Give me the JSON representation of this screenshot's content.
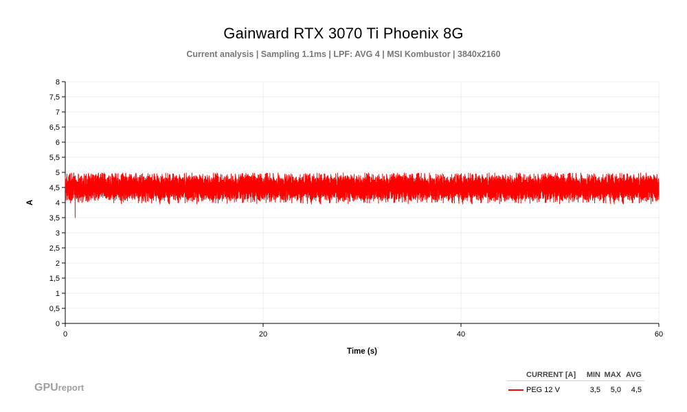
{
  "chart_data": {
    "type": "line",
    "title": "Gainward RTX 3070 Ti Phoenix 8G",
    "subtitle": "Current analysis | Sampling 1.1ms | LPF: AVG 4 |  MSI Kombustor | 3840x2160",
    "xlabel": "Time (s)",
    "ylabel": "A",
    "xlim": [
      0,
      60
    ],
    "ylim": [
      0,
      8
    ],
    "x_ticks": [
      "0",
      "20",
      "40",
      "60"
    ],
    "x_tick_values": [
      0,
      20,
      40,
      60
    ],
    "y_ticks": [
      "0",
      "0,5",
      "1",
      "1,5",
      "2",
      "2,5",
      "3",
      "3,5",
      "4",
      "4,5",
      "5",
      "5,5",
      "6",
      "6,5",
      "7",
      "7,5",
      "8"
    ],
    "y_tick_values": [
      0,
      0.5,
      1,
      1.5,
      2,
      2.5,
      3,
      3.5,
      4,
      4.5,
      5,
      5.5,
      6,
      6.5,
      7,
      7.5,
      8
    ],
    "grid": true,
    "legend_position": "bottom-right",
    "series": [
      {
        "name": "PEG 12 V",
        "color": "#ff0000",
        "min": "3,5",
        "max": "5,0",
        "avg": "4,5",
        "stats_numeric": {
          "min": 3.5,
          "max": 5.0,
          "avg": 4.5
        },
        "sample_interval_s": 0.0044,
        "dip": {
          "x": 1.0,
          "y": 3.5
        }
      }
    ]
  },
  "legend": {
    "header_name": "CURRENT [A]",
    "header_min": "MIN",
    "header_max": "MAX",
    "header_avg": "AVG"
  },
  "logo": {
    "gpu": "GPU",
    "report": "report"
  }
}
